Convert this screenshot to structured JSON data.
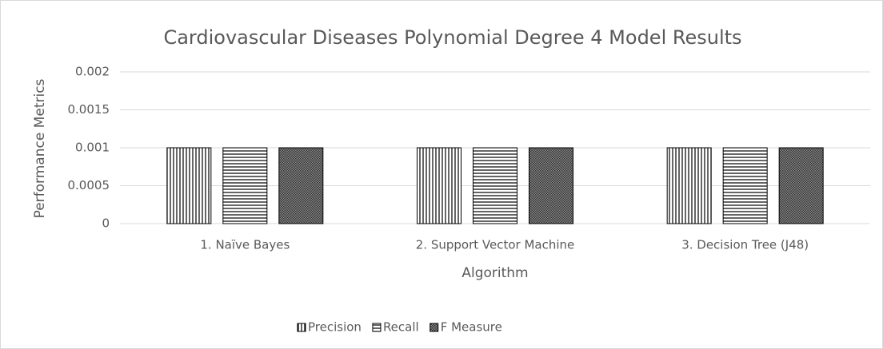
{
  "chart_data": {
    "type": "bar",
    "title": "Cardiovascular Diseases Polynomial Degree 4 Model Results",
    "x_label": "Algorithm",
    "y_label": "Performance Metrics",
    "categories": [
      "1. Naïve Bayes",
      "2. Support Vector Machine",
      "3. Decision Tree (J48)"
    ],
    "series": [
      {
        "name": "Precision",
        "color": "#000000",
        "pattern": "vertical",
        "values": [
          0.001,
          0.001,
          0.001
        ]
      },
      {
        "name": "Recall",
        "color": "#000000",
        "pattern": "horizontal",
        "values": [
          0.001,
          0.001,
          0.001
        ]
      },
      {
        "name": "F Measure",
        "color": "#000000",
        "pattern": "crosshatch",
        "values": [
          0.001,
          0.001,
          0.001
        ]
      }
    ],
    "ylim": [
      0,
      0.002
    ],
    "yticks": [
      0,
      0.0005,
      0.001,
      0.0015,
      0.002
    ],
    "grid": true,
    "legend": "bottom"
  }
}
